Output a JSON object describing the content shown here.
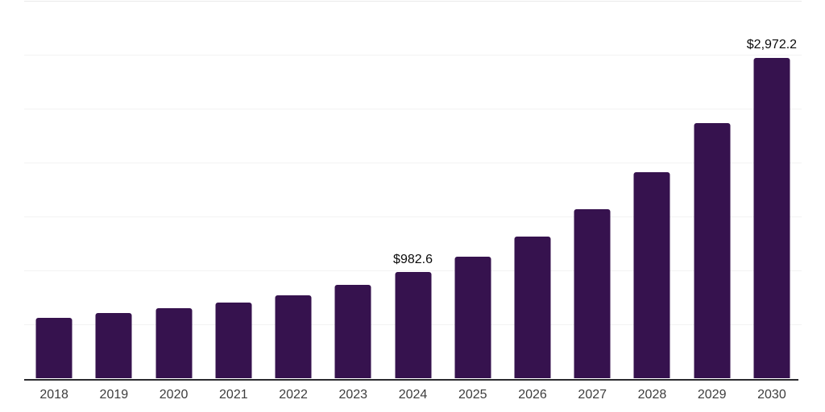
{
  "chart_data": {
    "type": "bar",
    "categories": [
      "2018",
      "2019",
      "2020",
      "2021",
      "2022",
      "2023",
      "2024",
      "2025",
      "2026",
      "2027",
      "2028",
      "2029",
      "2030"
    ],
    "values": [
      557,
      605,
      649,
      702,
      769,
      866,
      982.6,
      1129,
      1311,
      1567,
      1908,
      2364,
      2972.2
    ],
    "value_labels": [
      "",
      "",
      "",
      "",
      "",
      "",
      "$982.6",
      "",
      "",
      "",
      "",
      "",
      "$2,972.2"
    ],
    "title": "",
    "xlabel": "",
    "ylabel": "",
    "ylim": [
      0,
      3500
    ],
    "gridline_step": 500,
    "grid": "horizontal-only",
    "y_axis_tick_labels_visible": false,
    "legend_position": "none",
    "value_prefix": "$",
    "colors": {
      "bar": "#36124e",
      "axis_line": "#2a2a2e",
      "gridline": "#f3f3f3",
      "gridline_top": "#e9e9e9",
      "value_label": "#0b0b0b",
      "tick_label": "#3d3d3d",
      "background": "#ffffff"
    }
  }
}
